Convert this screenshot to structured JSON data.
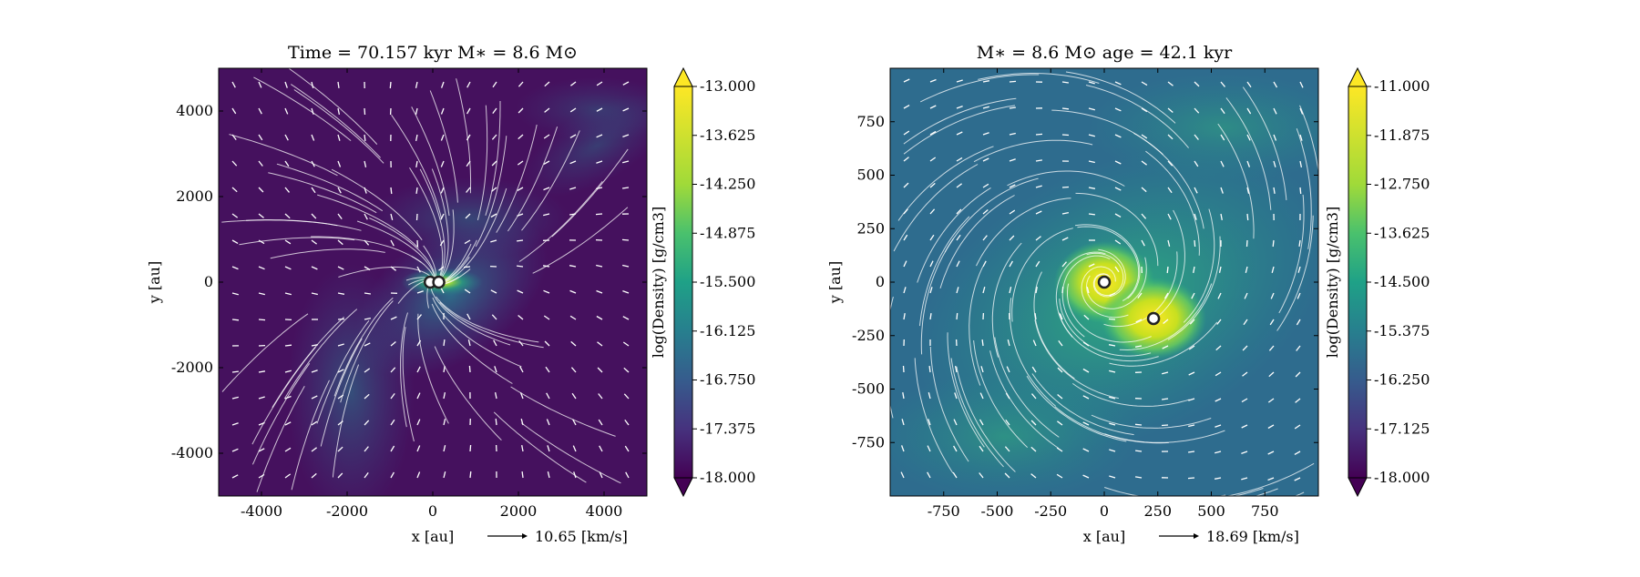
{
  "chart_data": [
    {
      "type": "heatmap",
      "title": "Time = 70.157 kyr    M∗ = 8.6 M⊙",
      "xlabel": "x [au]",
      "ylabel": "y [au]",
      "xlim": [
        -5000,
        5000
      ],
      "ylim": [
        -5000,
        5000
      ],
      "xticks": [
        -4000,
        -2000,
        0,
        2000,
        4000
      ],
      "yticks": [
        -4000,
        -2000,
        0,
        2000,
        4000
      ],
      "xtick_labels": [
        "-4000",
        "-2000",
        "0",
        "2000",
        "4000"
      ],
      "ytick_labels": [
        "-4000",
        "-2000",
        "0",
        "2000",
        "4000"
      ],
      "velocity_key": "10.65 [km/s]",
      "colorbar": {
        "label": "log(Density) [g/cm3]",
        "range": [
          -18.0,
          -13.0
        ],
        "ticks": [
          "-13.000",
          "-13.625",
          "-14.250",
          "-14.875",
          "-15.500",
          "-16.125",
          "-16.750",
          "-17.375",
          "-18.000"
        ]
      },
      "sinks": [
        {
          "x": -60,
          "y": 0
        },
        {
          "x": 140,
          "y": 0
        }
      ]
    },
    {
      "type": "heatmap",
      "title": "M∗ = 8.6 M⊙          age = 42.1 kyr",
      "xlabel": "x [au]",
      "ylabel": "y [au]",
      "xlim": [
        -1000,
        1000
      ],
      "ylim": [
        -1000,
        1000
      ],
      "xticks": [
        -750,
        -500,
        -250,
        0,
        250,
        500,
        750
      ],
      "yticks": [
        -750,
        -500,
        -250,
        0,
        250,
        500,
        750
      ],
      "xtick_labels": [
        "-750",
        "-500",
        "-250",
        "0",
        "250",
        "500",
        "750"
      ],
      "ytick_labels": [
        "-750",
        "-500",
        "-250",
        "0",
        "250",
        "500",
        "750"
      ],
      "velocity_key": "18.69 [km/s]",
      "colorbar": {
        "label": "log(Density) [g/cm3]",
        "range": [
          -18.0,
          -11.0
        ],
        "ticks": [
          "-11.000",
          "-11.875",
          "-12.750",
          "-13.625",
          "-14.500",
          "-15.375",
          "-16.250",
          "-17.125",
          "-18.000"
        ]
      },
      "sinks": [
        {
          "x": 0,
          "y": 0
        },
        {
          "x": 230,
          "y": -170
        }
      ]
    }
  ],
  "colors": {
    "background": "#ffffff",
    "low": "#440154",
    "mid": "#21918c",
    "high": "#fde725",
    "streamline": "#ffffff"
  }
}
